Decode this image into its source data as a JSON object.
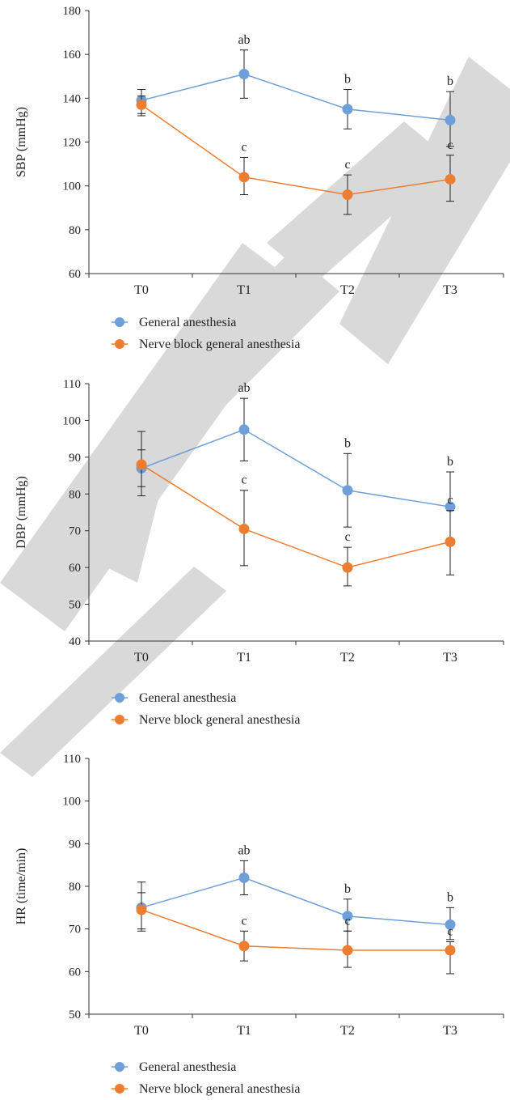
{
  "colors": {
    "general": "#6f9fd8",
    "nerve": "#ed7d31",
    "axis": "#333333",
    "watermark": "#d9d9d9"
  },
  "watermark": "RETRACTED",
  "chart_data": [
    {
      "type": "line",
      "ylabel": "SBP (mmHg)",
      "xlabel": "",
      "categories": [
        "T0",
        "T1",
        "T2",
        "T3"
      ],
      "ylim": [
        60,
        180
      ],
      "yticks": [
        60,
        80,
        100,
        120,
        140,
        160,
        180
      ],
      "grid": false,
      "legend_position": "bottom-left",
      "series": [
        {
          "name": "General anesthesia",
          "color_key": "general",
          "values": [
            139,
            151,
            135,
            130
          ],
          "err_low": [
            133,
            140,
            126,
            118
          ],
          "err_high": [
            144,
            162,
            144,
            143
          ],
          "annotations": [
            "",
            "ab",
            "b",
            "b"
          ]
        },
        {
          "name": "Nerve block general anesthesia",
          "color_key": "nerve",
          "values": [
            137,
            104,
            96,
            103
          ],
          "err_low": [
            132,
            96,
            87,
            93
          ],
          "err_high": [
            141,
            113,
            105,
            114
          ],
          "annotations": [
            "",
            "c",
            "c",
            "c"
          ]
        }
      ]
    },
    {
      "type": "line",
      "ylabel": "DBP (mmHg)",
      "xlabel": "",
      "categories": [
        "T0",
        "T1",
        "T2",
        "T3"
      ],
      "ylim": [
        40,
        110
      ],
      "yticks": [
        40,
        50,
        60,
        70,
        80,
        90,
        100,
        110
      ],
      "grid": false,
      "legend_position": "bottom-left",
      "series": [
        {
          "name": "General anesthesia",
          "color_key": "general",
          "values": [
            87,
            97.5,
            81,
            76.5
          ],
          "err_low": [
            82,
            89,
            71,
            67
          ],
          "err_high": [
            92,
            106,
            91,
            86
          ],
          "annotations": [
            "",
            "ab",
            "b",
            "b"
          ]
        },
        {
          "name": "Nerve block general anesthesia",
          "color_key": "nerve",
          "values": [
            88,
            70.5,
            60,
            67
          ],
          "err_low": [
            79.5,
            60.5,
            55,
            58
          ],
          "err_high": [
            97,
            81,
            65.5,
            75.5
          ],
          "annotations": [
            "",
            "c",
            "c",
            "c"
          ]
        }
      ]
    },
    {
      "type": "line",
      "ylabel": "HR (time/min)",
      "xlabel": "",
      "categories": [
        "T0",
        "T1",
        "T2",
        "T3"
      ],
      "ylim": [
        50,
        110
      ],
      "yticks": [
        50,
        60,
        70,
        80,
        90,
        100,
        110
      ],
      "grid": false,
      "legend_position": "bottom-left",
      "series": [
        {
          "name": "General anesthesia",
          "color_key": "general",
          "values": [
            75,
            82,
            73,
            71
          ],
          "err_low": [
            69.5,
            78,
            69.5,
            67.5
          ],
          "err_high": [
            81,
            86,
            77,
            75
          ],
          "annotations": [
            "",
            "ab",
            "b",
            "b"
          ]
        },
        {
          "name": "Nerve block general anesthesia",
          "color_key": "nerve",
          "values": [
            74.5,
            66,
            65,
            65
          ],
          "err_low": [
            70,
            62.5,
            61,
            59.5
          ],
          "err_high": [
            78.5,
            69.5,
            69.5,
            67
          ],
          "annotations": [
            "",
            "c",
            "c",
            "c"
          ]
        }
      ]
    }
  ]
}
